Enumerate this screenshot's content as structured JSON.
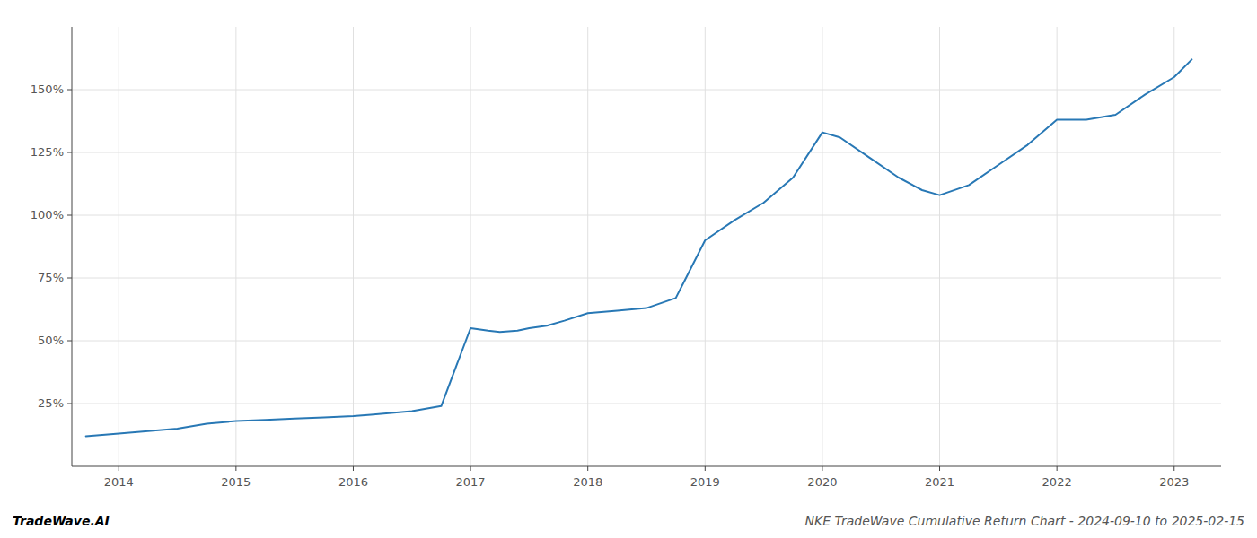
{
  "chart_data": {
    "type": "line",
    "title": "NKE TradeWave Cumulative Return Chart - 2024-09-10 to 2025-02-15",
    "annotations": [
      "TradeWave.AI"
    ],
    "x": [
      2013.72,
      2014.0,
      2014.25,
      2014.5,
      2014.75,
      2015.0,
      2015.25,
      2015.5,
      2015.75,
      2016.0,
      2016.15,
      2016.5,
      2016.75,
      2017.0,
      2017.15,
      2017.25,
      2017.4,
      2017.5,
      2017.65,
      2017.8,
      2018.0,
      2018.25,
      2018.5,
      2018.75,
      2019.0,
      2019.25,
      2019.5,
      2019.75,
      2020.0,
      2020.15,
      2020.4,
      2020.65,
      2020.85,
      2021.0,
      2021.25,
      2021.5,
      2021.75,
      2022.0,
      2022.25,
      2022.5,
      2022.75,
      2023.0,
      2023.15
    ],
    "values": [
      12,
      13,
      14,
      15,
      17,
      18,
      18.5,
      19,
      19.5,
      20,
      20.5,
      22,
      24,
      55,
      54,
      53.5,
      54,
      55,
      56,
      58,
      61,
      62,
      63,
      67,
      90,
      98,
      105,
      115,
      133,
      131,
      123,
      115,
      110,
      108,
      112,
      120,
      128,
      138,
      138,
      140,
      148,
      155,
      162
    ],
    "color": "#2878b5",
    "xlim": [
      2013.6,
      2023.4
    ],
    "ylim": [
      0,
      175
    ],
    "xticks": [
      2014,
      2015,
      2016,
      2017,
      2018,
      2019,
      2020,
      2021,
      2022,
      2023
    ],
    "yticks": [
      {
        "value": 25,
        "label": "25%"
      },
      {
        "value": 50,
        "label": "50%"
      },
      {
        "value": 75,
        "label": "75%"
      },
      {
        "value": 100,
        "label": "100%"
      },
      {
        "value": 125,
        "label": "125%"
      },
      {
        "value": 150,
        "label": "150%"
      }
    ],
    "grid": true
  }
}
